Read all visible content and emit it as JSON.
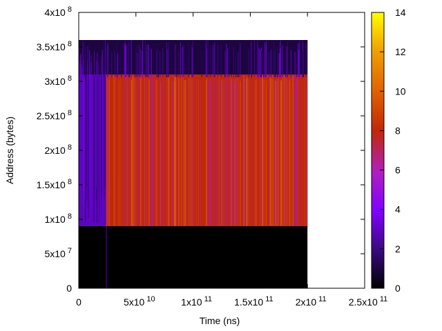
{
  "chart_data": {
    "type": "heatmap",
    "title": "",
    "xlabel": "Time (ns)",
    "ylabel": "Address (bytes)",
    "xlim": [
      0,
      250000000000
    ],
    "ylim": [
      0,
      400000000
    ],
    "x_ticks": [
      {
        "value": 0,
        "label": "0",
        "exp": ""
      },
      {
        "value": 50000000000,
        "label": "5x10",
        "exp": "10"
      },
      {
        "value": 100000000000,
        "label": "1x10",
        "exp": "11"
      },
      {
        "value": 150000000000,
        "label": "1.5x10",
        "exp": "11"
      },
      {
        "value": 200000000000,
        "label": "2x10",
        "exp": "11"
      },
      {
        "value": 250000000000,
        "label": "2.5x10",
        "exp": "11"
      }
    ],
    "y_ticks": [
      {
        "value": 0,
        "label": "0",
        "exp": ""
      },
      {
        "value": 50000000,
        "label": "5x10",
        "exp": "7"
      },
      {
        "value": 100000000,
        "label": "1x10",
        "exp": "8"
      },
      {
        "value": 150000000,
        "label": "1.5x10",
        "exp": "8"
      },
      {
        "value": 200000000,
        "label": "2x10",
        "exp": "8"
      },
      {
        "value": 250000000,
        "label": "2.5x10",
        "exp": "8"
      },
      {
        "value": 300000000,
        "label": "3x10",
        "exp": "8"
      },
      {
        "value": 350000000,
        "label": "3.5x10",
        "exp": "8"
      },
      {
        "value": 400000000,
        "label": "4x10",
        "exp": "8"
      }
    ],
    "colorbar": {
      "range": [
        0,
        14
      ],
      "ticks": [
        "0",
        "2",
        "4",
        "6",
        "8",
        "10",
        "12",
        "14"
      ]
    },
    "regions": [
      {
        "x": [
          0,
          200000000000
        ],
        "y": [
          0,
          360000000
        ],
        "value": 0
      },
      {
        "x": [
          0,
          23500000000
        ],
        "y": [
          90000000,
          310000000
        ],
        "value": 3
      },
      {
        "x": [
          23500000000,
          200000000000
        ],
        "y": [
          90000000,
          310000000
        ],
        "value": 8
      },
      {
        "x": [
          0,
          200000000000
        ],
        "y": [
          310000000,
          360000000
        ],
        "value": 1
      }
    ]
  }
}
